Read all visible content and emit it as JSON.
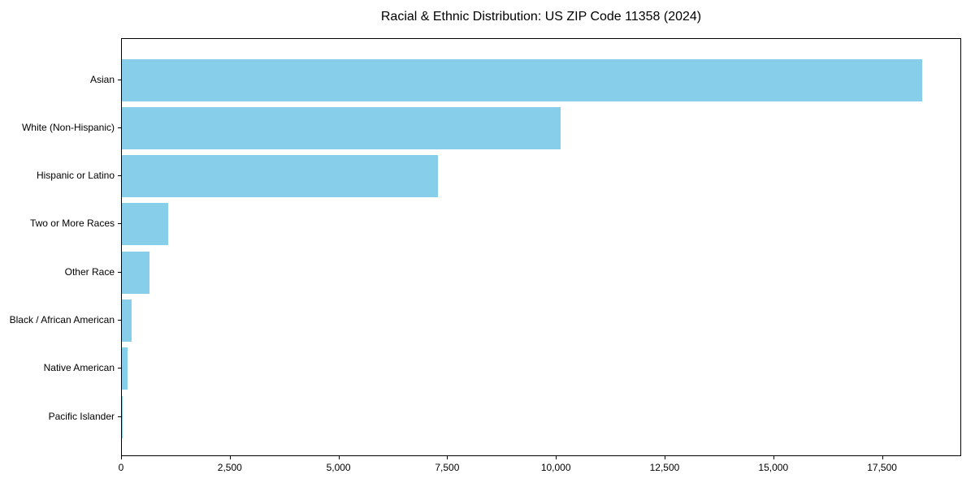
{
  "chart_data": {
    "type": "bar",
    "orientation": "horizontal",
    "title": "Racial & Ethnic Distribution: US ZIP Code 11358 (2024)",
    "categories": [
      "Asian",
      "White (Non-Hispanic)",
      "Hispanic or Latino",
      "Two or More Races",
      "Other Race",
      "Black / African American",
      "Native American",
      "Pacific Islander"
    ],
    "values": [
      18400,
      10090,
      7260,
      1060,
      630,
      225,
      130,
      10
    ],
    "xlabel": "",
    "ylabel": "",
    "xlim": [
      0,
      19320
    ],
    "xticks": [
      0,
      2500,
      5000,
      7500,
      10000,
      12500,
      15000,
      17500
    ],
    "xtick_labels": [
      "0",
      "2,500",
      "5,000",
      "7,500",
      "10,000",
      "12,500",
      "15,000",
      "17,500"
    ],
    "bar_color": "#87CEEB",
    "frame_color": "#000000",
    "background_color": "#ffffff",
    "grid": false,
    "legend": null
  }
}
